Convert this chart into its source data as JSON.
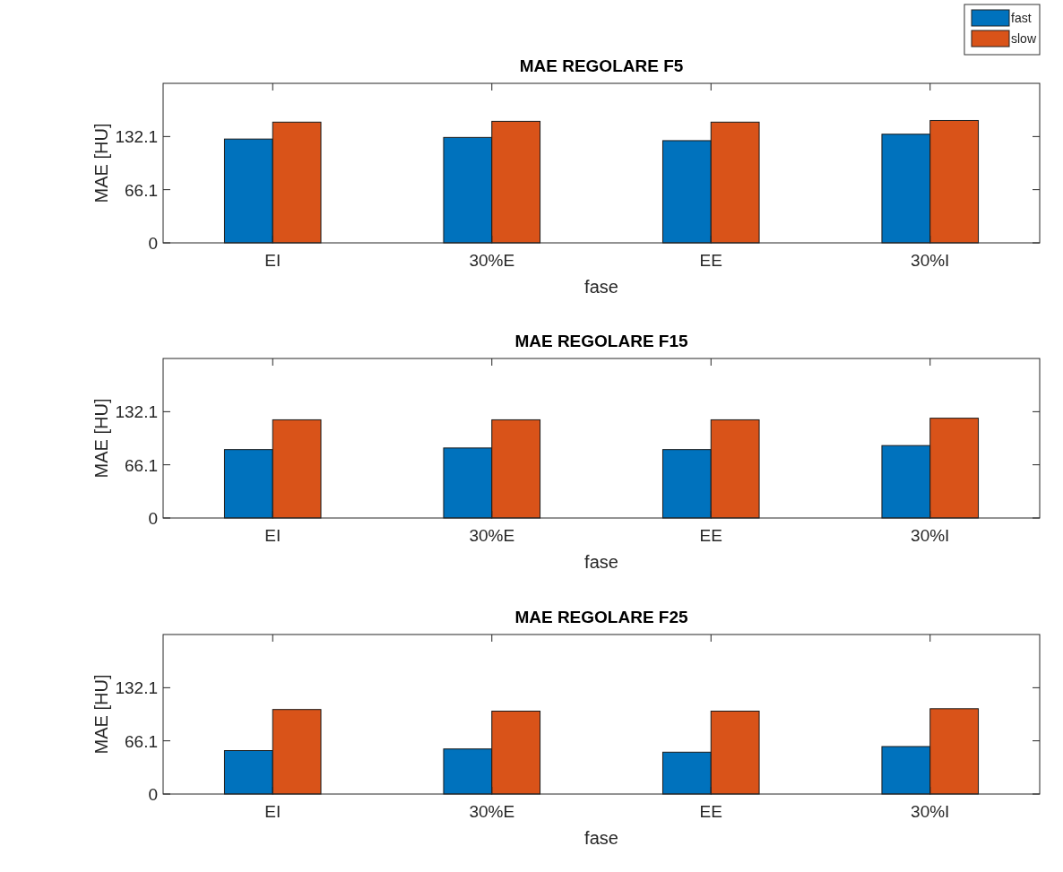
{
  "chart_data": [
    {
      "type": "bar",
      "title": "MAE REGOLARE F5",
      "xlabel": "fase",
      "ylabel": "MAE [HU]",
      "categories": [
        "EI",
        "30%E",
        "EE",
        "30%I"
      ],
      "series": [
        {
          "name": "fast",
          "color": "#0072bd",
          "values": [
            129,
            131,
            127,
            135
          ]
        },
        {
          "name": "slow",
          "color": "#d95319",
          "values": [
            150,
            151,
            150,
            152
          ]
        }
      ],
      "ylim": [
        0,
        198.2
      ],
      "yticks": [
        0,
        66.1,
        132.1
      ],
      "legend": "top right"
    },
    {
      "type": "bar",
      "title": "MAE REGOLARE F15",
      "xlabel": "fase",
      "ylabel": "MAE [HU]",
      "categories": [
        "EI",
        "30%E",
        "EE",
        "30%I"
      ],
      "series": [
        {
          "color": "#0072bd",
          "values": [
            85,
            87,
            85,
            90
          ]
        },
        {
          "color": "#d95319",
          "values": [
            122,
            122,
            122,
            124
          ]
        }
      ],
      "ylim": [
        0,
        198.2
      ],
      "yticks": [
        0,
        66.1,
        132.1
      ]
    },
    {
      "type": "bar",
      "title": "MAE REGOLARE F25",
      "xlabel": "fase",
      "ylabel": "MAE [HU]",
      "categories": [
        "EI",
        "30%E",
        "EE",
        "30%I"
      ],
      "series": [
        {
          "color": "#0072bd",
          "values": [
            54,
            56,
            52,
            59
          ]
        },
        {
          "color": "#d95319",
          "values": [
            105,
            103,
            103,
            106
          ]
        }
      ],
      "ylim": [
        0,
        198.2
      ],
      "yticks": [
        0,
        66.1,
        132.1
      ]
    }
  ]
}
